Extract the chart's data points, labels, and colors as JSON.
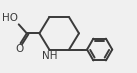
{
  "bg_color": "#f0f0f0",
  "bond_color": "#3a3a3a",
  "bond_width": 1.4,
  "text_color": "#3a3a3a",
  "font_size": 7.5,
  "figsize": [
    1.37,
    0.73
  ],
  "dpi": 100,
  "HO_label": "HO",
  "O_label": "O",
  "NH_label": "NH"
}
